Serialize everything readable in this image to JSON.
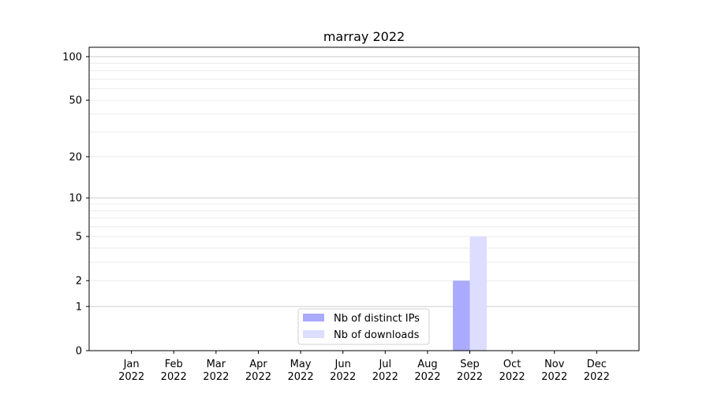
{
  "chart_data": {
    "type": "bar",
    "title": "marray 2022",
    "xlabel": "",
    "ylabel": "",
    "yscale": "log(1+y)",
    "categories": [
      "Jan\n2022",
      "Feb\n2022",
      "Mar\n2022",
      "Apr\n2022",
      "May\n2022",
      "Jun\n2022",
      "Jul\n2022",
      "Aug\n2022",
      "Sep\n2022",
      "Oct\n2022",
      "Nov\n2022",
      "Dec\n2022"
    ],
    "yticks": [
      0,
      1,
      2,
      5,
      10,
      20,
      50,
      100
    ],
    "ylim": [
      0,
      116
    ],
    "grid": true,
    "legend_position": "lower-center",
    "series": [
      {
        "name": "Nb of distinct IPs",
        "color": "#aaaaff",
        "values": [
          0,
          0,
          0,
          0,
          0,
          0,
          0,
          0,
          2,
          0,
          0,
          0
        ]
      },
      {
        "name": "Nb of downloads",
        "color": "#ddddff",
        "values": [
          0,
          0,
          0,
          0,
          0,
          0,
          0,
          0,
          5,
          0,
          0,
          0
        ]
      }
    ]
  }
}
